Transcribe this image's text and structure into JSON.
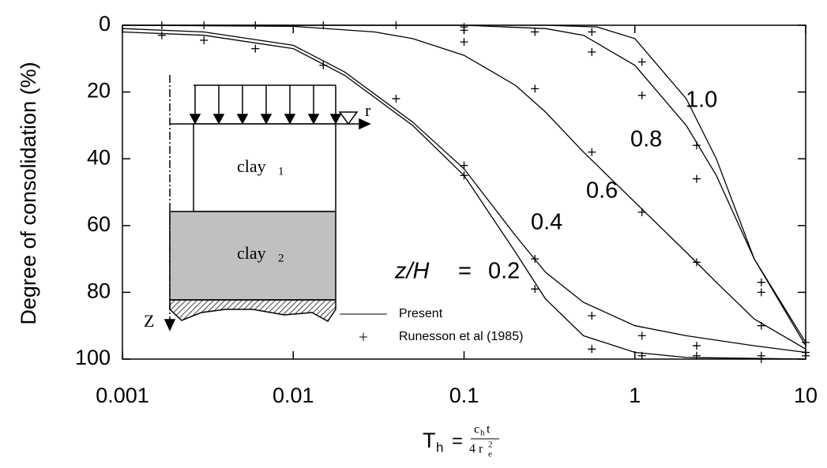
{
  "chart_data": {
    "type": "line",
    "ylabel": "Degree of consolidation (%)",
    "xlabel": {
      "symbol": "T",
      "subscript": "h",
      "equals": "=",
      "numerator": "c",
      "numerator_sub": "h",
      "numerator_rest": "t",
      "denominator": "4 r",
      "denominator_sub": "e",
      "denominator_sup": "2"
    },
    "xlim": [
      0.001,
      10
    ],
    "xticks": [
      0.001,
      0.01,
      0.1,
      1,
      10
    ],
    "xscale": "log",
    "ylim": [
      0,
      100
    ],
    "yticks": [
      0,
      20,
      40,
      60,
      80,
      100
    ],
    "y_inverted": true,
    "color": "#000000",
    "annotation": {
      "text": "z/H",
      "equals": "="
    },
    "series": [
      {
        "label": "0.2",
        "x": [
          0.001,
          0.003,
          0.01,
          0.02,
          0.05,
          0.1,
          0.2,
          0.3,
          0.5,
          1,
          2,
          10
        ],
        "values": [
          2,
          3,
          7,
          15,
          30,
          45,
          68,
          82,
          93,
          98,
          99.5,
          100
        ]
      },
      {
        "label": "0.4",
        "x": [
          0.001,
          0.003,
          0.01,
          0.02,
          0.05,
          0.1,
          0.2,
          0.3,
          0.5,
          1,
          2,
          5,
          10
        ],
        "values": [
          1,
          2,
          6,
          14,
          29,
          43,
          63,
          74,
          83,
          90,
          93,
          96,
          98
        ]
      },
      {
        "label": "0.6",
        "x": [
          0.001,
          0.01,
          0.03,
          0.05,
          0.1,
          0.2,
          0.3,
          0.5,
          1,
          2,
          3,
          5,
          10
        ],
        "values": [
          0,
          0.3,
          2,
          4,
          9,
          18,
          26,
          38,
          53,
          68,
          77,
          88,
          97
        ]
      },
      {
        "label": "0.8",
        "x": [
          0.001,
          0.1,
          0.3,
          0.5,
          1,
          2,
          3,
          5,
          10
        ],
        "values": [
          0,
          0,
          1,
          3,
          12,
          30,
          45,
          70,
          95
        ]
      },
      {
        "label": "1.0",
        "x": [
          0.001,
          0.3,
          0.6,
          1,
          2,
          3,
          5,
          10
        ],
        "values": [
          0,
          0,
          0.5,
          4,
          22,
          40,
          70,
          96
        ]
      }
    ],
    "markers": {
      "x": [
        0.0017,
        0.0017,
        0.003,
        0.003,
        0.006,
        0.006,
        0.015,
        0.015,
        0.04,
        0.04,
        0.1,
        0.1,
        0.1,
        0.1,
        0.1,
        0.26,
        0.26,
        0.26,
        0.26,
        0.56,
        0.56,
        0.56,
        0.56,
        0.56,
        1.1,
        1.1,
        1.1,
        1.1,
        1.1,
        2.3,
        2.3,
        2.3,
        2.3,
        2.3,
        5.5,
        5.5,
        5.5,
        5.5,
        5.5,
        10,
        10,
        10
      ],
      "values": [
        0,
        3,
        0,
        4.5,
        0,
        7,
        0,
        12,
        0,
        22,
        0.5,
        1.5,
        5,
        42,
        45,
        2,
        19,
        70,
        79,
        2,
        8,
        38,
        87,
        97,
        11,
        21,
        56,
        93,
        99,
        36,
        46,
        71,
        96,
        99,
        77,
        80,
        90,
        99,
        100,
        95,
        98,
        99
      ]
    },
    "legend": {
      "line": "Present",
      "marker": "Runesson et al (1985)"
    },
    "inset": {
      "layer_1": {
        "name": "clay",
        "index": "1"
      },
      "layer_2": {
        "name": "clay",
        "index": "2"
      },
      "r_axis": "r",
      "z_axis": "Z"
    }
  }
}
